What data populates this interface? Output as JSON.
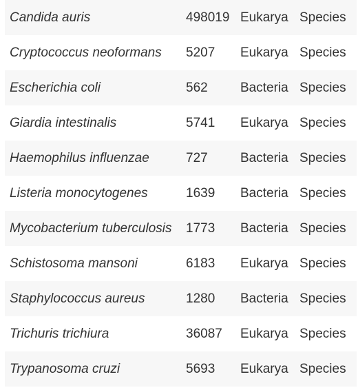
{
  "table": {
    "rows": [
      {
        "name": "Candida auris",
        "taxid": "498019",
        "domain": "Eukarya",
        "rank": "Species"
      },
      {
        "name": "Cryptococcus neoformans",
        "taxid": "5207",
        "domain": "Eukarya",
        "rank": "Species"
      },
      {
        "name": "Escherichia coli",
        "taxid": "562",
        "domain": "Bacteria",
        "rank": "Species"
      },
      {
        "name": "Giardia intestinalis",
        "taxid": "5741",
        "domain": "Eukarya",
        "rank": "Species"
      },
      {
        "name": "Haemophilus influenzae",
        "taxid": "727",
        "domain": "Bacteria",
        "rank": "Species"
      },
      {
        "name": "Listeria monocytogenes",
        "taxid": "1639",
        "domain": "Bacteria",
        "rank": "Species"
      },
      {
        "name": "Mycobacterium tuberculosis",
        "taxid": "1773",
        "domain": "Bacteria",
        "rank": "Species"
      },
      {
        "name": "Schistosoma mansoni",
        "taxid": "6183",
        "domain": "Eukarya",
        "rank": "Species"
      },
      {
        "name": "Staphylococcus aureus",
        "taxid": "1280",
        "domain": "Bacteria",
        "rank": "Species"
      },
      {
        "name": "Trichuris trichiura",
        "taxid": "36087",
        "domain": "Eukarya",
        "rank": "Species"
      },
      {
        "name": "Trypanosoma cruzi",
        "taxid": "5693",
        "domain": "Eukarya",
        "rank": "Species"
      }
    ]
  }
}
